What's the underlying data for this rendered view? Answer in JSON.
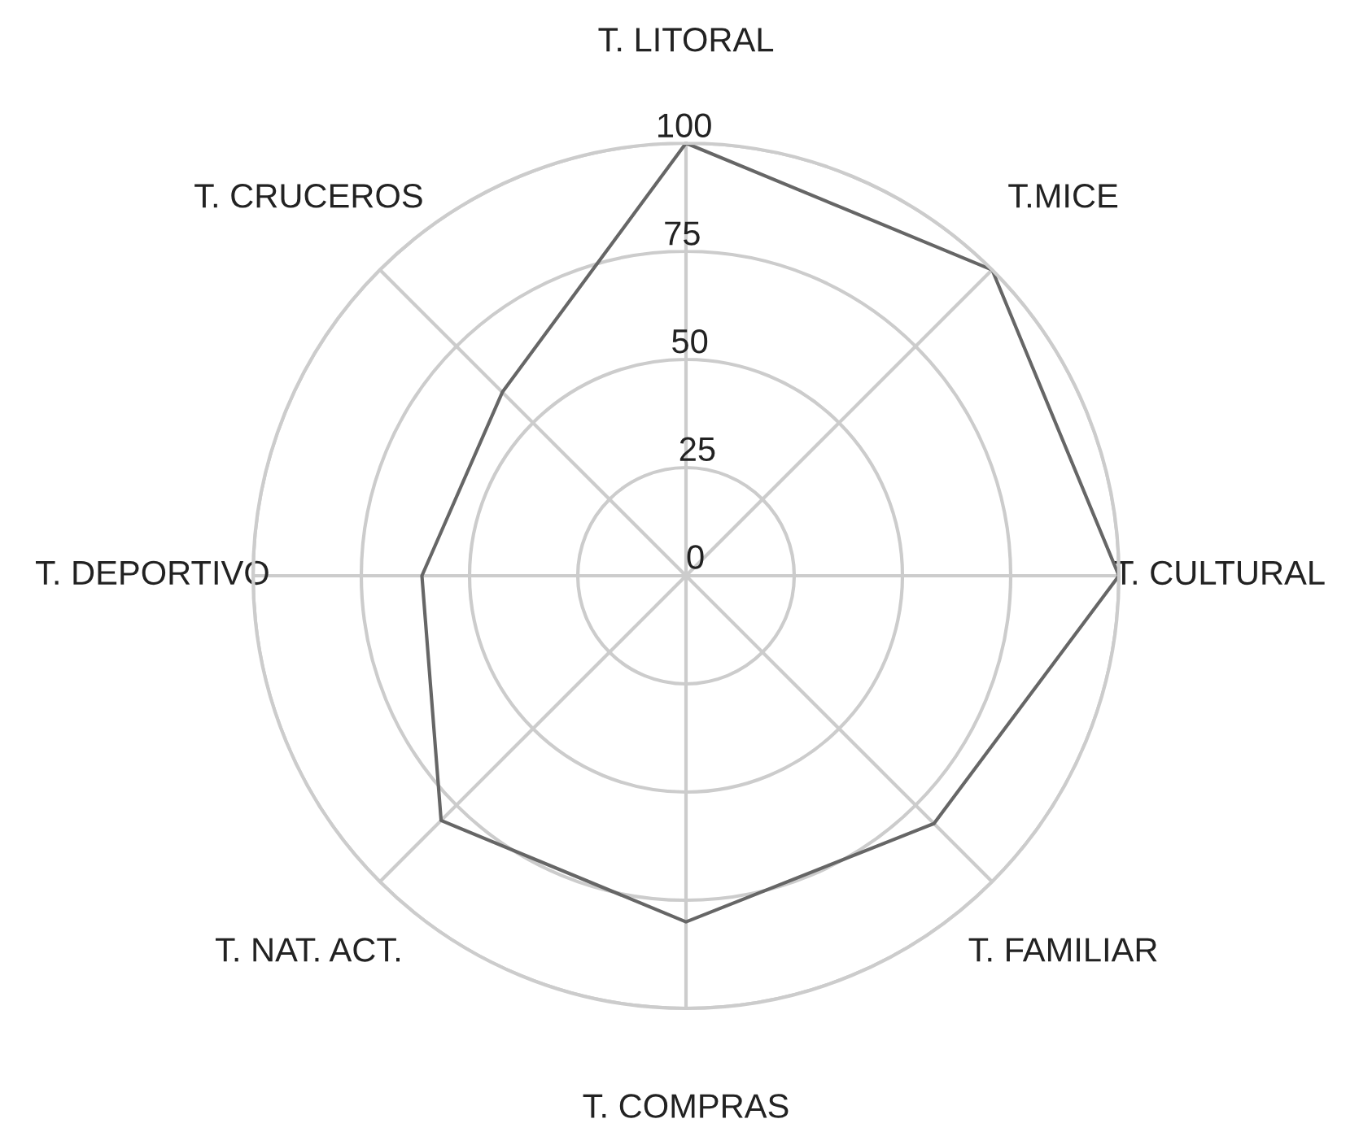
{
  "chart_data": {
    "type": "radar",
    "categories": [
      "T. LITORAL",
      "T.MICE",
      "T. CULTURAL",
      "T. FAMILIAR",
      "T. COMPRAS",
      "T. NAT. ACT.",
      "T. DEPORTIVO",
      "T. CRUCEROS"
    ],
    "series": [
      {
        "color": "#666666",
        "values": [
          100,
          100,
          100,
          81,
          80,
          80,
          61,
          60
        ]
      }
    ],
    "ylim": [
      0,
      100
    ],
    "yticks": [
      0,
      25,
      50,
      75,
      100
    ],
    "grid": true,
    "legend": false
  }
}
